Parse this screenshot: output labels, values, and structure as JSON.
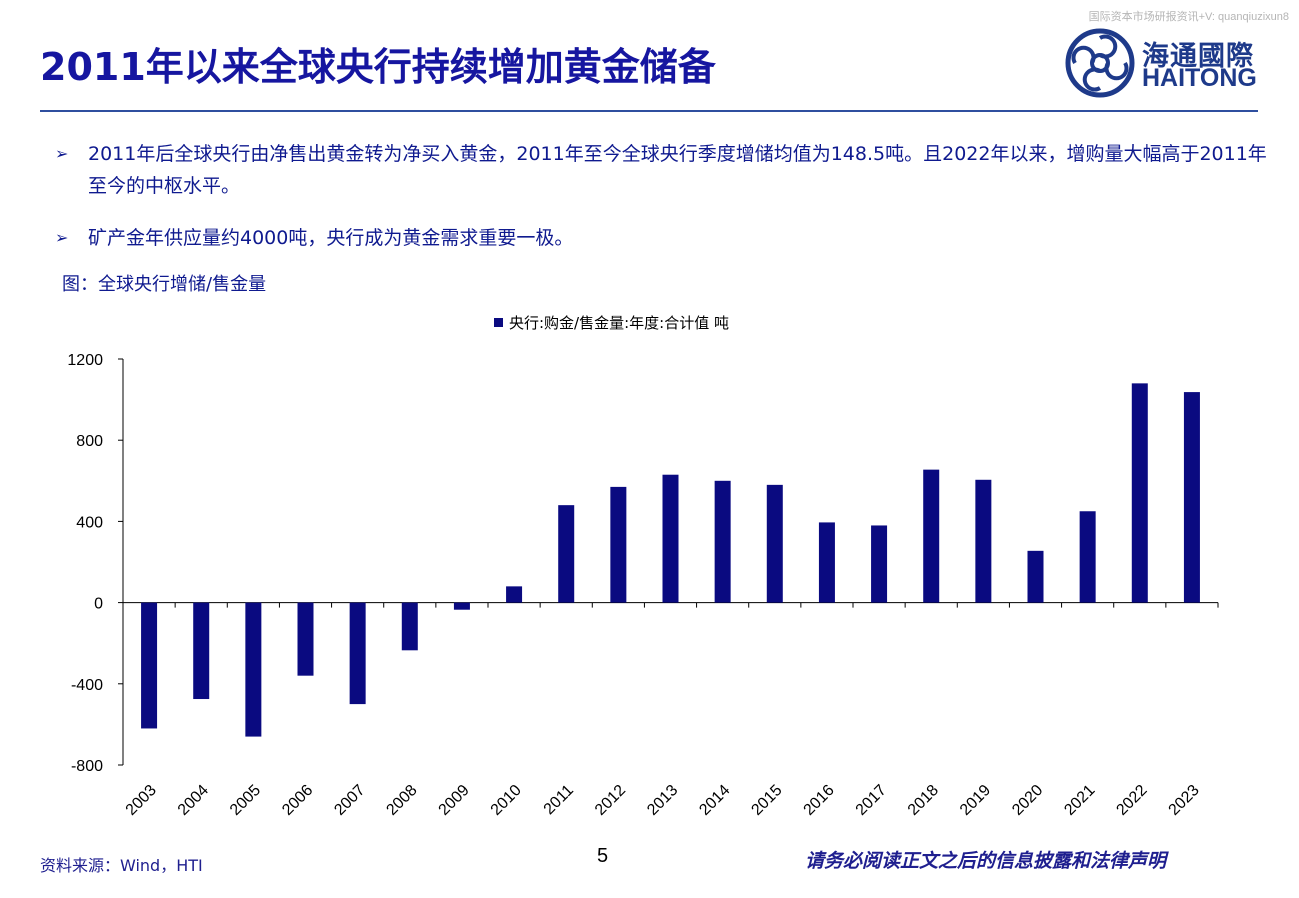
{
  "watermark": "国际资本市场研报资讯+V: quanqiuzixun8",
  "title": "2011年以来全球央行持续增加黄金储备",
  "logo": {
    "cn": "海通國際",
    "en": "HAITONG",
    "icon": "haitong-logo-icon",
    "color": "#1e3a8a"
  },
  "bullets": [
    {
      "arrow": "➢",
      "text": "2011年后全球央行由净售出黄金转为净买入黄金，2011年至今全球央行季度增储均值为148.5吨。且2022年以来，增购量大幅高于2011年至今的中枢水平。"
    },
    {
      "arrow": "➢",
      "text": "矿产金年供应量约4000吨，央行成为黄金需求重要一极。"
    }
  ],
  "caption": "图：全球央行增储/售金量",
  "chart_data": {
    "type": "bar",
    "title": "",
    "legend": {
      "label": "央行:购金/售金量:年度:合计值 吨",
      "placement": "top-center"
    },
    "bar_color": "#0a0a80",
    "categories": [
      "2003",
      "2004",
      "2005",
      "2006",
      "2007",
      "2008",
      "2009",
      "2010",
      "2011",
      "2012",
      "2013",
      "2014",
      "2015",
      "2016",
      "2017",
      "2018",
      "2019",
      "2020",
      "2021",
      "2022",
      "2023"
    ],
    "series": [
      {
        "name": "央行:购金/售金量:年度:合计值 吨",
        "values": [
          -620,
          -475,
          -660,
          -360,
          -500,
          -235,
          -35,
          80,
          480,
          570,
          630,
          600,
          580,
          395,
          380,
          655,
          605,
          255,
          450,
          1080,
          1037
        ]
      }
    ],
    "ylim": [
      -800,
      1200
    ],
    "yticks": [
      1200,
      800,
      400,
      0,
      -400,
      -800
    ],
    "xlabel": "",
    "ylabel": "",
    "grid": false
  },
  "footer": {
    "source": "资料来源：Wind，HTI",
    "page": "5",
    "disclaimer": "请务必阅读正文之后的信息披露和法律声明"
  }
}
